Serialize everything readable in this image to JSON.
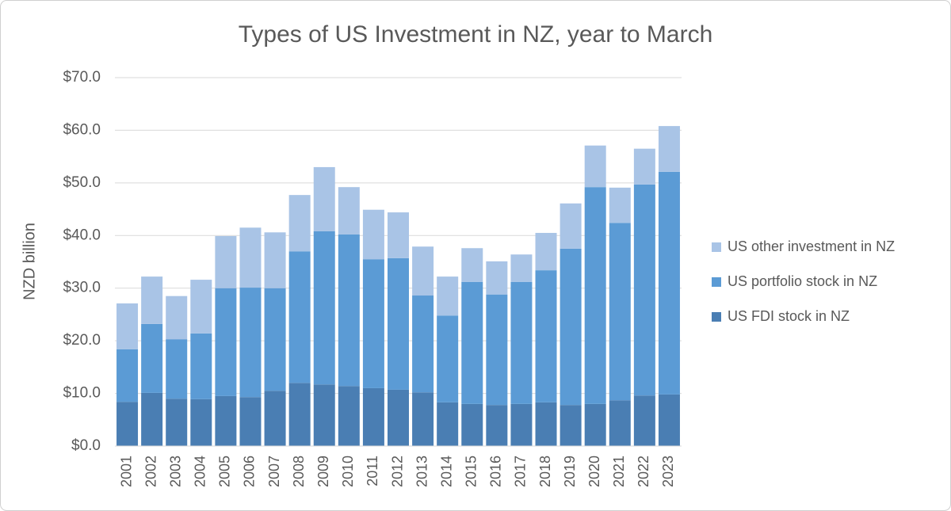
{
  "chart_data": {
    "type": "stacked-bar",
    "title": "Types of US Investment in NZ, year to March",
    "y_label": "NZD billion",
    "categories": [
      "2001",
      "2002",
      "2003",
      "2004",
      "2005",
      "2006",
      "2007",
      "2008",
      "2009",
      "2010",
      "2011",
      "2012",
      "2013",
      "2014",
      "2015",
      "2016",
      "2017",
      "2018",
      "2019",
      "2020",
      "2021",
      "2022",
      "2023"
    ],
    "series": [
      {
        "name": "US FDI stock in NZ",
        "color": "#4a7eb3",
        "values": [
          8.4,
          10.1,
          9.0,
          8.9,
          9.5,
          9.3,
          10.5,
          12.0,
          11.7,
          11.4,
          11.0,
          10.7,
          10.2,
          8.3,
          8.0,
          7.8,
          8.0,
          8.3,
          7.8,
          8.0,
          8.7,
          9.6,
          9.8
        ]
      },
      {
        "name": "US portfolio stock in NZ",
        "color": "#5b9bd5",
        "values": [
          10.0,
          13.1,
          11.3,
          12.5,
          20.5,
          20.8,
          19.5,
          25.0,
          29.1,
          28.8,
          24.5,
          25.0,
          18.4,
          16.5,
          23.2,
          21.0,
          23.2,
          25.1,
          29.7,
          41.2,
          33.7,
          40.1,
          42.3
        ]
      },
      {
        "name": "US other investment in NZ",
        "color": "#a9c4e6",
        "values": [
          8.7,
          9.0,
          8.2,
          10.2,
          9.9,
          11.4,
          10.6,
          10.7,
          12.2,
          9.0,
          9.4,
          8.7,
          9.3,
          7.4,
          6.4,
          6.3,
          5.2,
          7.1,
          8.6,
          7.9,
          6.7,
          6.8,
          8.7
        ]
      }
    ],
    "ylim": [
      0,
      70
    ],
    "yticks": [
      {
        "value": 0,
        "label": "$0.0"
      },
      {
        "value": 10,
        "label": "$10.0"
      },
      {
        "value": 20,
        "label": "$20.0"
      },
      {
        "value": 30,
        "label": "$30.0"
      },
      {
        "value": 40,
        "label": "$40.0"
      },
      {
        "value": 50,
        "label": "$50.0"
      },
      {
        "value": 60,
        "label": "$60.0"
      },
      {
        "value": 70,
        "label": "$70.0"
      }
    ],
    "grid": true,
    "legend": "right"
  }
}
